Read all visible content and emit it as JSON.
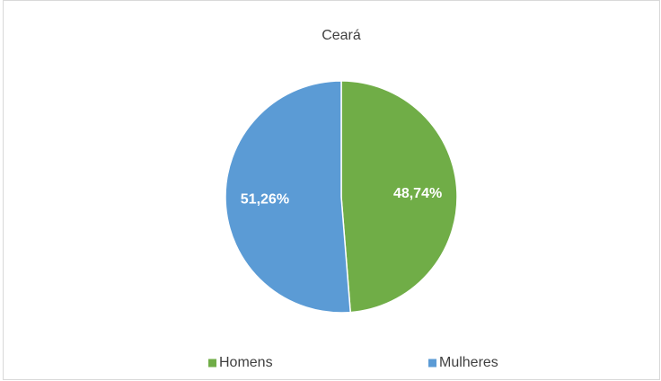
{
  "chart_data": {
    "type": "pie",
    "title": "Ceará",
    "categories": [
      "Homens",
      "Mulheres"
    ],
    "values": [
      48.74,
      51.26
    ],
    "value_labels": [
      "48,74%",
      "51,26%"
    ],
    "colors": [
      "#70ad47",
      "#5b9bd5"
    ],
    "legend": "bottom"
  }
}
